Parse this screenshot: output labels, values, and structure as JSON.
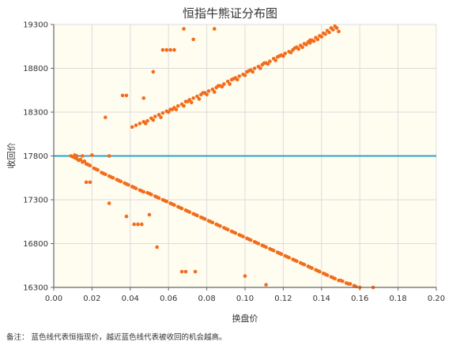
{
  "footnote": "备注：  蓝色线代表恒指现价，越近蓝色线代表被收回的机会越高。",
  "chart_data": {
    "type": "scatter",
    "title": "恒指牛熊证分布图",
    "xlabel": "换盘价",
    "ylabel": "收回价",
    "xlim": [
      0.0,
      0.2
    ],
    "ylim": [
      16300,
      19300
    ],
    "x_ticks": [
      "0.00",
      "0.02",
      "0.04",
      "0.06",
      "0.08",
      "0.10",
      "0.12",
      "0.14",
      "0.16",
      "0.18",
      "0.20"
    ],
    "y_ticks": [
      "16300",
      "16800",
      "17300",
      "17800",
      "18300",
      "18800",
      "19300"
    ],
    "grid": true,
    "plot_background": "#fffcf0",
    "point_color": "#f26d1a",
    "reference_line": {
      "y": 17800,
      "color": "#2ba4c7"
    },
    "points": [
      [
        0.041,
        18130
      ],
      [
        0.043,
        18150
      ],
      [
        0.045,
        18170
      ],
      [
        0.047,
        18190
      ],
      [
        0.049,
        18200
      ],
      [
        0.051,
        18230
      ],
      [
        0.053,
        18250
      ],
      [
        0.055,
        18270
      ],
      [
        0.057,
        18290
      ],
      [
        0.059,
        18310
      ],
      [
        0.061,
        18330
      ],
      [
        0.063,
        18350
      ],
      [
        0.065,
        18370
      ],
      [
        0.067,
        18390
      ],
      [
        0.069,
        18420
      ],
      [
        0.071,
        18440
      ],
      [
        0.073,
        18460
      ],
      [
        0.075,
        18480
      ],
      [
        0.077,
        18500
      ],
      [
        0.079,
        18520
      ],
      [
        0.081,
        18540
      ],
      [
        0.083,
        18560
      ],
      [
        0.085,
        18580
      ],
      [
        0.087,
        18600
      ],
      [
        0.089,
        18620
      ],
      [
        0.091,
        18650
      ],
      [
        0.093,
        18670
      ],
      [
        0.095,
        18690
      ],
      [
        0.097,
        18710
      ],
      [
        0.099,
        18730
      ],
      [
        0.101,
        18760
      ],
      [
        0.103,
        18780
      ],
      [
        0.105,
        18800
      ],
      [
        0.107,
        18820
      ],
      [
        0.109,
        18840
      ],
      [
        0.111,
        18860
      ],
      [
        0.113,
        18880
      ],
      [
        0.115,
        18910
      ],
      [
        0.117,
        18930
      ],
      [
        0.119,
        18950
      ],
      [
        0.121,
        18970
      ],
      [
        0.123,
        18990
      ],
      [
        0.125,
        19010
      ],
      [
        0.127,
        19040
      ],
      [
        0.129,
        19060
      ],
      [
        0.131,
        19080
      ],
      [
        0.133,
        19100
      ],
      [
        0.135,
        19120
      ],
      [
        0.137,
        19150
      ],
      [
        0.139,
        19170
      ],
      [
        0.141,
        19200
      ],
      [
        0.143,
        19230
      ],
      [
        0.145,
        19260
      ],
      [
        0.147,
        19280
      ],
      [
        0.048,
        18170
      ],
      [
        0.052,
        18210
      ],
      [
        0.056,
        18240
      ],
      [
        0.06,
        18300
      ],
      [
        0.064,
        18330
      ],
      [
        0.068,
        18370
      ],
      [
        0.072,
        18410
      ],
      [
        0.076,
        18450
      ],
      [
        0.08,
        18500
      ],
      [
        0.084,
        18530
      ],
      [
        0.088,
        18590
      ],
      [
        0.092,
        18620
      ],
      [
        0.096,
        18670
      ],
      [
        0.1,
        18720
      ],
      [
        0.104,
        18760
      ],
      [
        0.108,
        18800
      ],
      [
        0.112,
        18850
      ],
      [
        0.116,
        18890
      ],
      [
        0.12,
        18940
      ],
      [
        0.124,
        18980
      ],
      [
        0.128,
        19020
      ],
      [
        0.132,
        19070
      ],
      [
        0.136,
        19110
      ],
      [
        0.14,
        19160
      ],
      [
        0.144,
        19210
      ],
      [
        0.146,
        19240
      ],
      [
        0.142,
        19190
      ],
      [
        0.138,
        19130
      ],
      [
        0.134,
        19090
      ],
      [
        0.13,
        19040
      ],
      [
        0.062,
        18330
      ],
      [
        0.07,
        18420
      ],
      [
        0.078,
        18520
      ],
      [
        0.086,
        18600
      ],
      [
        0.094,
        18680
      ],
      [
        0.102,
        18770
      ],
      [
        0.11,
        18860
      ],
      [
        0.118,
        18940
      ],
      [
        0.126,
        19030
      ],
      [
        0.134,
        19120
      ],
      [
        0.148,
        19260
      ],
      [
        0.068,
        19250
      ],
      [
        0.073,
        19130
      ],
      [
        0.084,
        19250
      ],
      [
        0.057,
        19010
      ],
      [
        0.059,
        19010
      ],
      [
        0.061,
        19010
      ],
      [
        0.063,
        19010
      ],
      [
        0.047,
        18460
      ],
      [
        0.052,
        18760
      ],
      [
        0.036,
        18490
      ],
      [
        0.038,
        18490
      ],
      [
        0.027,
        18240
      ],
      [
        0.149,
        19220
      ],
      [
        0.01,
        17790
      ],
      [
        0.011,
        17780
      ],
      [
        0.012,
        17770
      ],
      [
        0.013,
        17750
      ],
      [
        0.015,
        17730
      ],
      [
        0.017,
        17710
      ],
      [
        0.019,
        17690
      ],
      [
        0.021,
        17660
      ],
      [
        0.023,
        17640
      ],
      [
        0.025,
        17610
      ],
      [
        0.027,
        17590
      ],
      [
        0.029,
        17570
      ],
      [
        0.031,
        17550
      ],
      [
        0.033,
        17530
      ],
      [
        0.035,
        17510
      ],
      [
        0.037,
        17490
      ],
      [
        0.039,
        17470
      ],
      [
        0.041,
        17450
      ],
      [
        0.043,
        17430
      ],
      [
        0.045,
        17410
      ],
      [
        0.047,
        17390
      ],
      [
        0.049,
        17380
      ],
      [
        0.051,
        17360
      ],
      [
        0.053,
        17340
      ],
      [
        0.055,
        17320
      ],
      [
        0.057,
        17300
      ],
      [
        0.059,
        17280
      ],
      [
        0.061,
        17260
      ],
      [
        0.063,
        17240
      ],
      [
        0.065,
        17220
      ],
      [
        0.067,
        17200
      ],
      [
        0.069,
        17180
      ],
      [
        0.071,
        17160
      ],
      [
        0.073,
        17140
      ],
      [
        0.075,
        17120
      ],
      [
        0.077,
        17100
      ],
      [
        0.079,
        17080
      ],
      [
        0.081,
        17060
      ],
      [
        0.083,
        17040
      ],
      [
        0.085,
        17020
      ],
      [
        0.087,
        17000
      ],
      [
        0.089,
        16980
      ],
      [
        0.091,
        16960
      ],
      [
        0.093,
        16940
      ],
      [
        0.095,
        16920
      ],
      [
        0.097,
        16900
      ],
      [
        0.099,
        16880
      ],
      [
        0.101,
        16860
      ],
      [
        0.103,
        16840
      ],
      [
        0.105,
        16820
      ],
      [
        0.107,
        16800
      ],
      [
        0.109,
        16780
      ],
      [
        0.111,
        16760
      ],
      [
        0.113,
        16740
      ],
      [
        0.115,
        16720
      ],
      [
        0.117,
        16700
      ],
      [
        0.119,
        16680
      ],
      [
        0.121,
        16660
      ],
      [
        0.123,
        16640
      ],
      [
        0.125,
        16620
      ],
      [
        0.127,
        16600
      ],
      [
        0.129,
        16580
      ],
      [
        0.131,
        16560
      ],
      [
        0.133,
        16540
      ],
      [
        0.135,
        16520
      ],
      [
        0.137,
        16500
      ],
      [
        0.139,
        16480
      ],
      [
        0.141,
        16460
      ],
      [
        0.143,
        16440
      ],
      [
        0.145,
        16420
      ],
      [
        0.147,
        16400
      ],
      [
        0.149,
        16380
      ],
      [
        0.151,
        16370
      ],
      [
        0.153,
        16350
      ],
      [
        0.155,
        16340
      ],
      [
        0.157,
        16320
      ],
      [
        0.16,
        16300
      ],
      [
        0.012,
        17800
      ],
      [
        0.014,
        17760
      ],
      [
        0.016,
        17740
      ],
      [
        0.018,
        17700
      ],
      [
        0.022,
        17650
      ],
      [
        0.026,
        17600
      ],
      [
        0.03,
        17560
      ],
      [
        0.034,
        17520
      ],
      [
        0.038,
        17480
      ],
      [
        0.042,
        17440
      ],
      [
        0.046,
        17400
      ],
      [
        0.05,
        17370
      ],
      [
        0.054,
        17330
      ],
      [
        0.058,
        17290
      ],
      [
        0.062,
        17250
      ],
      [
        0.066,
        17210
      ],
      [
        0.07,
        17170
      ],
      [
        0.074,
        17130
      ],
      [
        0.078,
        17090
      ],
      [
        0.082,
        17050
      ],
      [
        0.086,
        17010
      ],
      [
        0.09,
        16970
      ],
      [
        0.094,
        16930
      ],
      [
        0.098,
        16890
      ],
      [
        0.102,
        16850
      ],
      [
        0.106,
        16810
      ],
      [
        0.11,
        16770
      ],
      [
        0.114,
        16730
      ],
      [
        0.118,
        16690
      ],
      [
        0.122,
        16650
      ],
      [
        0.126,
        16610
      ],
      [
        0.13,
        16570
      ],
      [
        0.134,
        16530
      ],
      [
        0.138,
        16490
      ],
      [
        0.142,
        16450
      ],
      [
        0.146,
        16410
      ],
      [
        0.15,
        16380
      ],
      [
        0.154,
        16340
      ],
      [
        0.158,
        16310
      ],
      [
        0.009,
        17800
      ],
      [
        0.011,
        17810
      ],
      [
        0.015,
        17800
      ],
      [
        0.02,
        17810
      ],
      [
        0.029,
        17800
      ],
      [
        0.017,
        17500
      ],
      [
        0.019,
        17500
      ],
      [
        0.029,
        17260
      ],
      [
        0.038,
        17110
      ],
      [
        0.042,
        17020
      ],
      [
        0.044,
        17020
      ],
      [
        0.046,
        17020
      ],
      [
        0.05,
        17130
      ],
      [
        0.054,
        16760
      ],
      [
        0.067,
        16480
      ],
      [
        0.069,
        16480
      ],
      [
        0.074,
        16480
      ],
      [
        0.1,
        16430
      ],
      [
        0.111,
        16330
      ],
      [
        0.167,
        16300
      ]
    ]
  }
}
